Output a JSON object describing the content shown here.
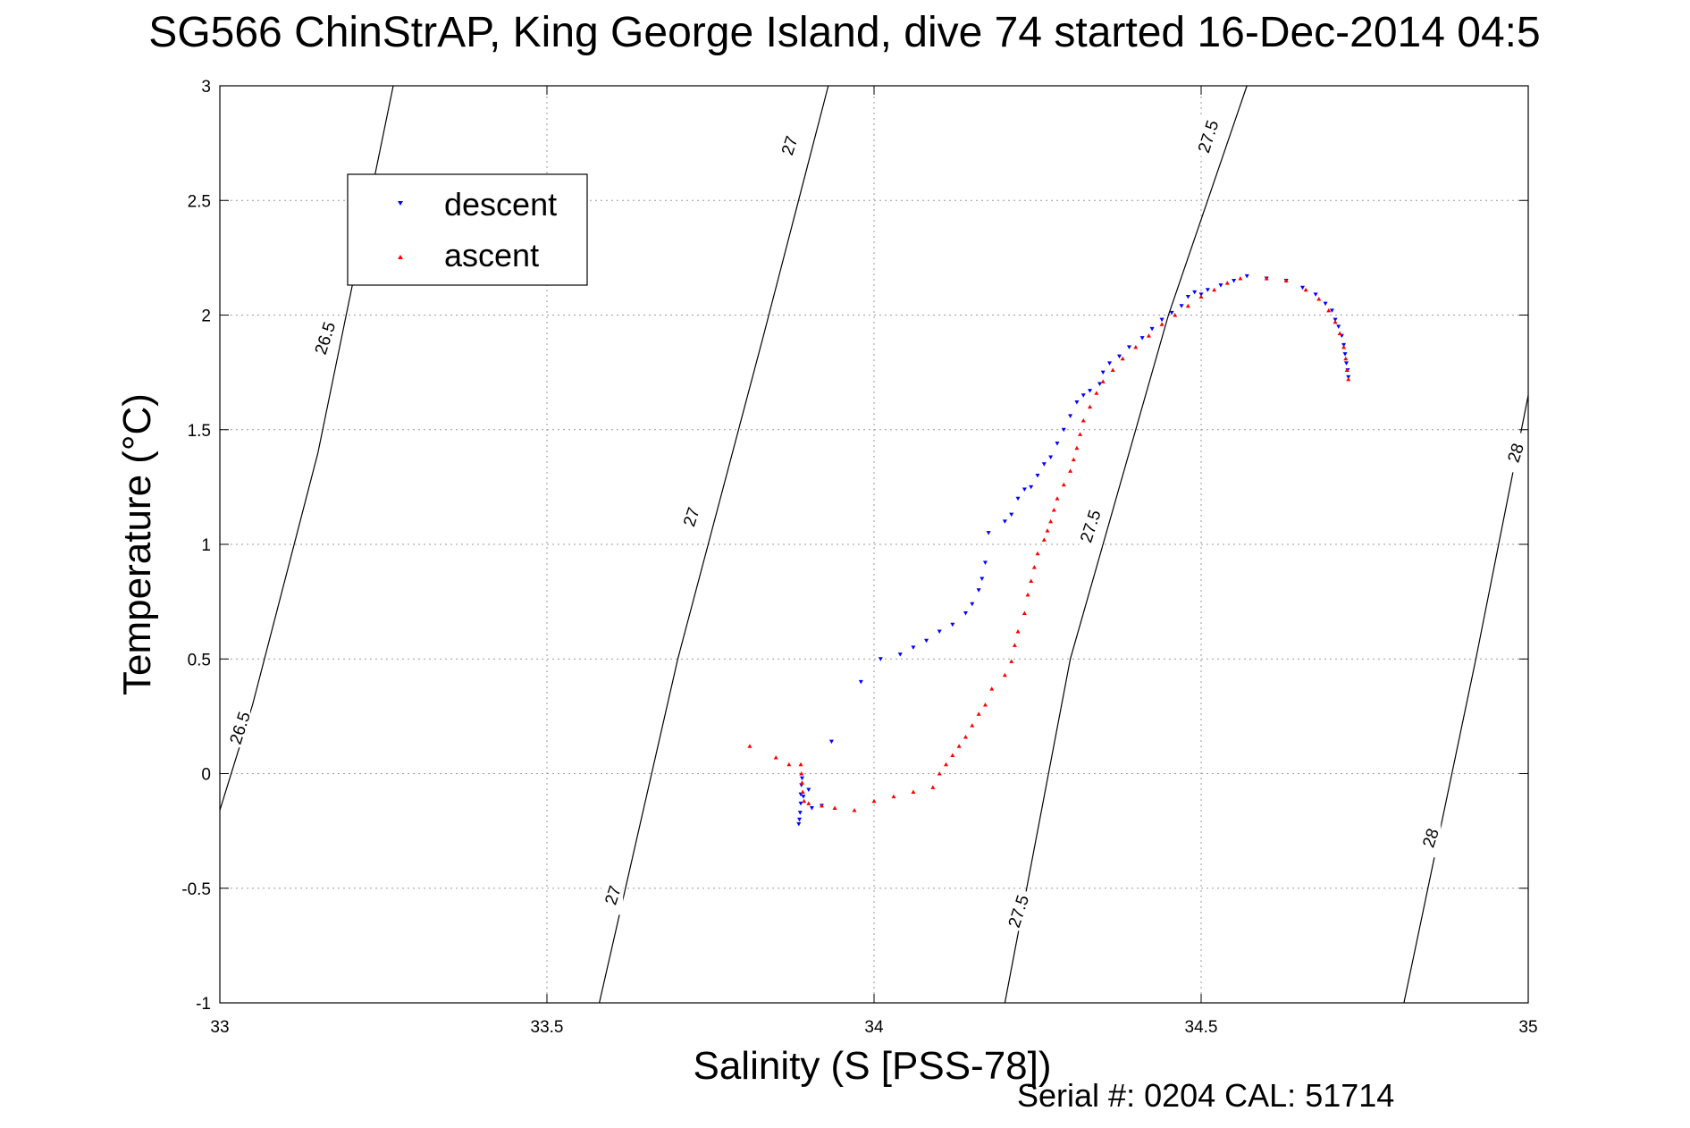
{
  "chart_data": {
    "type": "scatter",
    "title": "SG566 ChinStrAP, King George Island, dive 74 started 16-Dec-2014 04:5",
    "xlabel": "Salinity (S [PSS-78])",
    "ylabel": "Temperature (°C)",
    "xlim": [
      33,
      35
    ],
    "ylim": [
      -1,
      3
    ],
    "xticks": [
      "33",
      "33.5",
      "34",
      "34.5",
      "35"
    ],
    "yticks": [
      "-1",
      "-0.5",
      "0",
      "0.5",
      "1",
      "1.5",
      "2",
      "2.5",
      "3"
    ],
    "grid": true,
    "legend_position": "top-left",
    "series": [
      {
        "name": "descent",
        "color": "#0000ff",
        "marker": "triangle-down",
        "points": [
          [
            33.885,
            -0.22
          ],
          [
            33.886,
            -0.2
          ],
          [
            33.887,
            -0.17
          ],
          [
            33.888,
            -0.13
          ],
          [
            33.888,
            -0.09
          ],
          [
            33.889,
            -0.05
          ],
          [
            33.89,
            -0.02
          ],
          [
            33.892,
            -0.1
          ],
          [
            33.9,
            -0.07
          ],
          [
            33.905,
            -0.15
          ],
          [
            33.92,
            -0.14
          ],
          [
            33.935,
            0.14
          ],
          [
            33.98,
            0.4
          ],
          [
            34.01,
            0.5
          ],
          [
            34.04,
            0.52
          ],
          [
            34.06,
            0.55
          ],
          [
            34.08,
            0.58
          ],
          [
            34.1,
            0.62
          ],
          [
            34.12,
            0.65
          ],
          [
            34.14,
            0.7
          ],
          [
            34.15,
            0.74
          ],
          [
            34.16,
            0.8
          ],
          [
            34.165,
            0.85
          ],
          [
            34.17,
            0.92
          ],
          [
            34.175,
            1.05
          ],
          [
            34.2,
            1.1
          ],
          [
            34.21,
            1.13
          ],
          [
            34.22,
            1.2
          ],
          [
            34.23,
            1.24
          ],
          [
            34.24,
            1.25
          ],
          [
            34.25,
            1.3
          ],
          [
            34.26,
            1.35
          ],
          [
            34.27,
            1.38
          ],
          [
            34.28,
            1.44
          ],
          [
            34.29,
            1.5
          ],
          [
            34.3,
            1.56
          ],
          [
            34.31,
            1.62
          ],
          [
            34.32,
            1.65
          ],
          [
            34.33,
            1.67
          ],
          [
            34.345,
            1.7
          ],
          [
            34.35,
            1.75
          ],
          [
            34.36,
            1.79
          ],
          [
            34.375,
            1.82
          ],
          [
            34.39,
            1.86
          ],
          [
            34.41,
            1.9
          ],
          [
            34.425,
            1.94
          ],
          [
            34.44,
            1.98
          ],
          [
            34.455,
            2.01
          ],
          [
            34.47,
            2.04
          ],
          [
            34.48,
            2.08
          ],
          [
            34.49,
            2.1
          ],
          [
            34.5,
            2.09
          ],
          [
            34.51,
            2.11
          ],
          [
            34.53,
            2.13
          ],
          [
            34.55,
            2.15
          ],
          [
            34.57,
            2.17
          ],
          [
            34.6,
            2.16
          ],
          [
            34.63,
            2.15
          ],
          [
            34.655,
            2.12
          ],
          [
            34.675,
            2.09
          ],
          [
            34.69,
            2.05
          ],
          [
            34.7,
            2.02
          ],
          [
            34.705,
            1.98
          ],
          [
            34.71,
            1.95
          ],
          [
            34.715,
            1.91
          ],
          [
            34.718,
            1.87
          ],
          [
            34.72,
            1.83
          ],
          [
            34.722,
            1.79
          ],
          [
            34.724,
            1.76
          ],
          [
            34.725,
            1.73
          ]
        ]
      },
      {
        "name": "ascent",
        "color": "#ff0000",
        "marker": "triangle-up",
        "points": [
          [
            33.81,
            0.12
          ],
          [
            33.85,
            0.07
          ],
          [
            33.87,
            0.04
          ],
          [
            33.888,
            0.04
          ],
          [
            33.889,
            0.0
          ],
          [
            33.89,
            -0.04
          ],
          [
            33.891,
            -0.08
          ],
          [
            33.893,
            -0.12
          ],
          [
            33.9,
            -0.13
          ],
          [
            33.92,
            -0.14
          ],
          [
            33.94,
            -0.15
          ],
          [
            33.97,
            -0.16
          ],
          [
            34.0,
            -0.12
          ],
          [
            34.03,
            -0.1
          ],
          [
            34.06,
            -0.08
          ],
          [
            34.09,
            -0.06
          ],
          [
            34.1,
            0.0
          ],
          [
            34.11,
            0.04
          ],
          [
            34.12,
            0.08
          ],
          [
            34.13,
            0.12
          ],
          [
            34.14,
            0.16
          ],
          [
            34.15,
            0.21
          ],
          [
            34.16,
            0.26
          ],
          [
            34.17,
            0.3
          ],
          [
            34.18,
            0.37
          ],
          [
            34.2,
            0.43
          ],
          [
            34.21,
            0.49
          ],
          [
            34.215,
            0.56
          ],
          [
            34.22,
            0.62
          ],
          [
            34.23,
            0.7
          ],
          [
            34.235,
            0.78
          ],
          [
            34.24,
            0.84
          ],
          [
            34.245,
            0.9
          ],
          [
            34.25,
            0.96
          ],
          [
            34.26,
            1.02
          ],
          [
            34.265,
            1.06
          ],
          [
            34.27,
            1.1
          ],
          [
            34.275,
            1.15
          ],
          [
            34.28,
            1.2
          ],
          [
            34.29,
            1.26
          ],
          [
            34.3,
            1.32
          ],
          [
            34.305,
            1.37
          ],
          [
            34.31,
            1.42
          ],
          [
            34.315,
            1.48
          ],
          [
            34.32,
            1.54
          ],
          [
            34.33,
            1.6
          ],
          [
            34.34,
            1.66
          ],
          [
            34.35,
            1.71
          ],
          [
            34.365,
            1.76
          ],
          [
            34.38,
            1.81
          ],
          [
            34.4,
            1.86
          ],
          [
            34.42,
            1.91
          ],
          [
            34.44,
            1.96
          ],
          [
            34.46,
            2.0
          ],
          [
            34.48,
            2.04
          ],
          [
            34.5,
            2.08
          ],
          [
            34.52,
            2.11
          ],
          [
            34.54,
            2.14
          ],
          [
            34.56,
            2.16
          ],
          [
            34.6,
            2.16
          ],
          [
            34.63,
            2.15
          ],
          [
            34.66,
            2.11
          ],
          [
            34.68,
            2.07
          ],
          [
            34.695,
            2.02
          ],
          [
            34.705,
            1.97
          ],
          [
            34.712,
            1.92
          ],
          [
            34.718,
            1.86
          ],
          [
            34.721,
            1.81
          ],
          [
            34.723,
            1.76
          ],
          [
            34.725,
            1.72
          ]
        ]
      }
    ],
    "density_contours": [
      {
        "label": "26.5",
        "points": [
          [
            33.0,
            -0.16
          ],
          [
            33.05,
            0.3
          ],
          [
            33.15,
            1.4
          ],
          [
            33.265,
            3.0
          ]
        ],
        "label_positions": [
          [
            33.03,
            0.2
          ],
          [
            33.16,
            1.9
          ]
        ]
      },
      {
        "label": "27",
        "points": [
          [
            33.58,
            -1.0
          ],
          [
            33.7,
            0.5
          ],
          [
            33.83,
            1.9
          ],
          [
            33.93,
            3.0
          ]
        ],
        "label_positions": [
          [
            33.6,
            -0.53
          ],
          [
            33.72,
            1.12
          ],
          [
            33.87,
            2.74
          ]
        ]
      },
      {
        "label": "27.5",
        "points": [
          [
            34.2,
            -1.0
          ],
          [
            34.3,
            0.5
          ],
          [
            34.45,
            2.0
          ],
          [
            34.57,
            3.0
          ]
        ],
        "label_positions": [
          [
            34.22,
            -0.6
          ],
          [
            34.33,
            1.08
          ],
          [
            34.51,
            2.78
          ]
        ]
      },
      {
        "label": "28",
        "points": [
          [
            34.81,
            -1.0
          ],
          [
            34.92,
            0.5
          ],
          [
            35.0,
            1.65
          ]
        ],
        "label_positions": [
          [
            34.85,
            -0.28
          ],
          [
            34.98,
            1.4
          ]
        ]
      }
    ]
  },
  "legend": {
    "descent_label": "descent",
    "ascent_label": "ascent"
  },
  "footer": {
    "text": "Serial #: 0204  CAL: 51714"
  }
}
